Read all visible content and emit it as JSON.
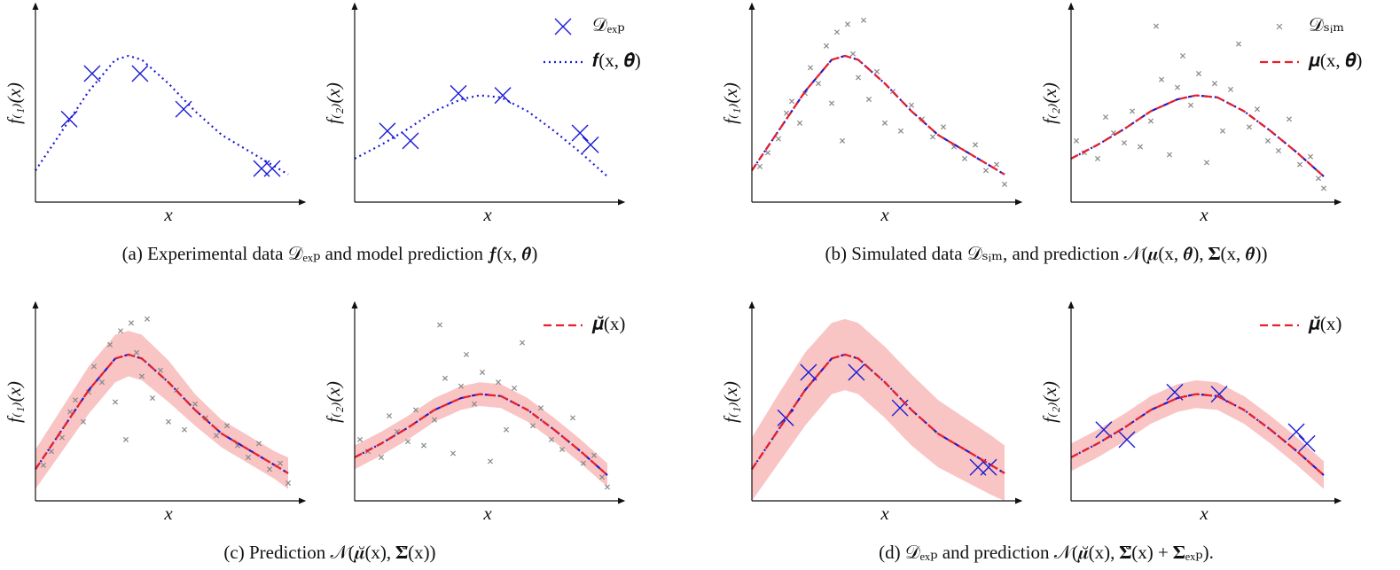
{
  "captions": [
    "(a) Experimental data 𝒟ₑₓₚ and model prediction 𝒇(x, 𝜽̂)",
    "(b) Simulated data 𝒟ₛᵢₘ, and prediction 𝒩(𝝁(x, 𝜽̂), 𝚺(x, 𝜽̂))",
    "(c) Prediction 𝒩(𝝁̆(x), 𝚺̆(x))",
    "(d) 𝒟ₑₓₚ and prediction 𝒩(𝝁̆(x), 𝚺̆(x) + 𝚺ₑₓₚ)."
  ],
  "chart_data": [
    {
      "type": "line",
      "xlabel": "x",
      "ylabel": "f₍₁₎(x)",
      "xlim": [
        0,
        10
      ],
      "ylim": [
        0,
        10
      ],
      "series": [
        {
          "type": "scatter",
          "marker": "x-large",
          "color": "#1a1ad6",
          "x": [
            1.27,
            2.13,
            3.93,
            5.57,
            8.5,
            8.9
          ],
          "values": [
            4.2,
            6.5,
            6.5,
            4.7,
            1.7,
            1.7
          ]
        },
        {
          "type": "line",
          "style": "dotted",
          "color": "#1a1ad6",
          "x": [
            0,
            1,
            2,
            3,
            3.5,
            4,
            5,
            6,
            7,
            8,
            9,
            9.5
          ],
          "values": [
            1.6,
            3.6,
            5.6,
            7.2,
            7.4,
            7.2,
            6.0,
            4.6,
            3.4,
            2.6,
            1.8,
            1.4
          ]
        }
      ]
    },
    {
      "type": "line",
      "xlabel": "x",
      "ylabel": "f₍₂₎(x)",
      "xlim": [
        0,
        10
      ],
      "ylim": [
        0,
        10
      ],
      "legend": "upper right",
      "series": [
        {
          "type": "scatter",
          "name": "𝒟ₑₓₚ",
          "marker": "x-large",
          "color": "#1a1ad6",
          "x": [
            1.23,
            2.1,
            3.9,
            5.57,
            8.47,
            8.87
          ],
          "values": [
            3.6,
            3.1,
            5.5,
            5.4,
            3.5,
            2.9
          ]
        },
        {
          "type": "line",
          "name": "𝒇(x, 𝜽̂)",
          "style": "dotted",
          "color": "#1a1ad6",
          "x": [
            0,
            1,
            2,
            3,
            4,
            4.7,
            5.5,
            6.5,
            7.5,
            8.5,
            9.5
          ],
          "values": [
            2.2,
            2.9,
            3.7,
            4.6,
            5.2,
            5.4,
            5.3,
            4.6,
            3.6,
            2.5,
            1.3
          ]
        }
      ]
    },
    {
      "type": "line",
      "xlabel": "x",
      "ylabel": "f₍₁₎(x)",
      "xlim": [
        0,
        10
      ],
      "ylim": [
        0,
        10
      ],
      "series": [
        {
          "type": "scatter",
          "marker": "x-small",
          "color": "#888888",
          "x": [
            0.3,
            0.6,
            1.0,
            1.3,
            1.5,
            1.8,
            2.0,
            2.2,
            2.5,
            2.8,
            3.0,
            3.2,
            3.4,
            3.6,
            3.8,
            4.0,
            4.2,
            4.4,
            4.7,
            5.0,
            5.3,
            5.6,
            6.0,
            6.4,
            6.8,
            7.2,
            7.6,
            8.0,
            8.4,
            8.8,
            9.2,
            9.5
          ],
          "values": [
            1.8,
            2.5,
            3.2,
            4.5,
            5.1,
            4.0,
            5.5,
            6.8,
            6.0,
            7.9,
            5.0,
            8.6,
            3.1,
            9.0,
            7.5,
            6.3,
            9.2,
            5.2,
            6.6,
            4.0,
            5.6,
            3.6,
            4.9,
            4.2,
            3.3,
            3.8,
            2.8,
            2.2,
            2.9,
            1.6,
            1.9,
            0.9
          ]
        },
        {
          "type": "line",
          "style": "dashed",
          "color": "#e8202a",
          "under_color": "#1a1ad6",
          "x": [
            0,
            1,
            2,
            3,
            3.5,
            4,
            5,
            6,
            7,
            8,
            9,
            9.5
          ],
          "values": [
            1.6,
            3.6,
            5.6,
            7.2,
            7.4,
            7.2,
            6.0,
            4.6,
            3.4,
            2.6,
            1.8,
            1.4
          ]
        }
      ]
    },
    {
      "type": "line",
      "xlabel": "x",
      "ylabel": "f₍₂₎(x)",
      "xlim": [
        0,
        10
      ],
      "ylim": [
        0,
        10
      ],
      "legend": "upper right",
      "series": [
        {
          "type": "scatter",
          "name": "𝒟ₛᵢₘ",
          "marker": "x-small",
          "color": "#888888",
          "x": [
            0.2,
            0.5,
            1.0,
            1.3,
            1.6,
            2.0,
            2.3,
            2.6,
            3.0,
            3.2,
            3.4,
            3.7,
            4.0,
            4.2,
            4.5,
            4.8,
            5.1,
            5.4,
            5.7,
            6.0,
            6.3,
            6.7,
            7.0,
            7.4,
            7.8,
            8.2,
            8.6,
            9.0,
            9.3,
            9.5
          ],
          "values": [
            3.1,
            2.5,
            2.2,
            4.3,
            3.5,
            3.0,
            4.6,
            2.8,
            4.1,
            8.9,
            6.2,
            2.4,
            5.8,
            7.4,
            4.9,
            6.5,
            2.0,
            6.0,
            3.6,
            5.7,
            8.0,
            3.8,
            4.7,
            3.1,
            2.6,
            4.2,
            1.9,
            2.3,
            1.2,
            0.7
          ]
        },
        {
          "type": "line",
          "name": "𝝁(x, 𝜽̂)",
          "style": "dashed",
          "color": "#e8202a",
          "under_color": "#1a1ad6",
          "x": [
            0,
            1,
            2,
            3,
            4,
            4.7,
            5.5,
            6.5,
            7.5,
            8.5,
            9.5
          ],
          "values": [
            2.2,
            2.9,
            3.7,
            4.6,
            5.2,
            5.4,
            5.3,
            4.6,
            3.6,
            2.5,
            1.3
          ]
        }
      ]
    },
    {
      "type": "line",
      "xlabel": "x",
      "ylabel": "f₍₁₎(x)",
      "xlim": [
        0,
        10
      ],
      "ylim": [
        0,
        10
      ],
      "series": [
        {
          "type": "band",
          "color": "#f9c4c4",
          "x": [
            0,
            1,
            2,
            3,
            3.5,
            4,
            5,
            6,
            7,
            8,
            9,
            9.5
          ],
          "lower": [
            0.6,
            2.5,
            4.4,
            6.0,
            6.3,
            6.1,
            5.0,
            3.8,
            2.7,
            1.9,
            1.1,
            0.6
          ],
          "upper": [
            2.6,
            4.7,
            6.8,
            8.4,
            8.6,
            8.4,
            7.1,
            5.4,
            4.1,
            3.3,
            2.5,
            2.2
          ]
        },
        {
          "type": "scatter",
          "marker": "x-small",
          "color": "#888888",
          "x": [
            0.3,
            0.6,
            1.0,
            1.3,
            1.5,
            1.8,
            2.0,
            2.2,
            2.5,
            2.8,
            3.0,
            3.2,
            3.4,
            3.6,
            3.8,
            4.0,
            4.2,
            4.4,
            4.7,
            5.0,
            5.3,
            5.6,
            6.0,
            6.4,
            6.8,
            7.2,
            7.6,
            8.0,
            8.4,
            8.8,
            9.2,
            9.5
          ],
          "values": [
            1.8,
            2.5,
            3.2,
            4.5,
            5.1,
            4.0,
            5.5,
            6.8,
            6.0,
            7.9,
            5.0,
            8.6,
            3.1,
            9.0,
            7.5,
            6.3,
            9.2,
            5.2,
            6.6,
            4.0,
            5.6,
            3.6,
            4.9,
            4.2,
            3.3,
            3.8,
            2.8,
            2.2,
            2.9,
            1.6,
            1.9,
            0.9
          ]
        },
        {
          "type": "line",
          "style": "dashed",
          "color": "#e8202a",
          "under_color": "#1a1ad6",
          "x": [
            0,
            1,
            2,
            3,
            3.5,
            4,
            5,
            6,
            7,
            8,
            9,
            9.5
          ],
          "values": [
            1.6,
            3.6,
            5.6,
            7.2,
            7.4,
            7.2,
            6.0,
            4.6,
            3.4,
            2.6,
            1.8,
            1.4
          ]
        }
      ]
    },
    {
      "type": "line",
      "xlabel": "x",
      "ylabel": "f₍₂₎(x)",
      "xlim": [
        0,
        10
      ],
      "ylim": [
        0,
        10
      ],
      "legend": "upper right",
      "series": [
        {
          "type": "band",
          "color": "#f9c4c4",
          "x": [
            0,
            1,
            2,
            3,
            4,
            4.7,
            5.5,
            6.5,
            7.5,
            8.5,
            9.5
          ],
          "lower": [
            1.6,
            2.3,
            3.1,
            4.0,
            4.6,
            4.8,
            4.7,
            4.0,
            3.0,
            1.9,
            0.7
          ],
          "upper": [
            2.8,
            3.5,
            4.3,
            5.2,
            5.8,
            6.0,
            5.9,
            5.2,
            4.2,
            3.1,
            1.9
          ]
        },
        {
          "type": "scatter",
          "marker": "x-small",
          "color": "#888888",
          "x": [
            0.2,
            0.5,
            1.0,
            1.3,
            1.6,
            2.0,
            2.3,
            2.6,
            3.0,
            3.2,
            3.4,
            3.7,
            4.0,
            4.2,
            4.5,
            4.8,
            5.1,
            5.4,
            5.7,
            6.0,
            6.3,
            6.7,
            7.0,
            7.4,
            7.8,
            8.2,
            8.6,
            9.0,
            9.3,
            9.5
          ],
          "values": [
            3.1,
            2.5,
            2.2,
            4.3,
            3.5,
            3.0,
            4.6,
            2.8,
            4.1,
            8.9,
            6.2,
            2.4,
            5.8,
            7.4,
            4.9,
            6.5,
            2.0,
            6.0,
            3.6,
            5.7,
            8.0,
            3.8,
            4.7,
            3.1,
            2.6,
            4.2,
            1.9,
            2.3,
            1.2,
            0.7
          ]
        },
        {
          "type": "line",
          "name": "𝝁̆(x)",
          "style": "dashed",
          "color": "#e8202a",
          "under_color": "#1a1ad6",
          "x": [
            0,
            1,
            2,
            3,
            4,
            4.7,
            5.5,
            6.5,
            7.5,
            8.5,
            9.5
          ],
          "values": [
            2.2,
            2.9,
            3.7,
            4.6,
            5.2,
            5.4,
            5.3,
            4.6,
            3.6,
            2.5,
            1.3
          ]
        }
      ]
    },
    {
      "type": "line",
      "xlabel": "x",
      "ylabel": "f₍₁₎(x)",
      "xlim": [
        0,
        10
      ],
      "ylim": [
        0,
        10
      ],
      "series": [
        {
          "type": "band",
          "color": "#f9c4c4",
          "x": [
            0,
            1,
            2,
            3,
            3.5,
            4,
            5,
            6,
            7,
            8,
            9,
            9.5
          ],
          "lower": [
            0.0,
            1.9,
            3.8,
            5.4,
            5.6,
            5.4,
            4.2,
            2.8,
            1.7,
            1.0,
            0.3,
            0.0
          ],
          "upper": [
            3.2,
            5.4,
            7.5,
            9.0,
            9.2,
            9.0,
            7.8,
            6.4,
            5.1,
            4.2,
            3.3,
            2.8
          ]
        },
        {
          "type": "scatter",
          "marker": "x-large",
          "color": "#1a1ad6",
          "x": [
            1.27,
            2.13,
            3.93,
            5.57,
            8.5,
            8.9
          ],
          "values": [
            4.2,
            6.5,
            6.5,
            4.7,
            1.7,
            1.7
          ]
        },
        {
          "type": "line",
          "style": "dashed",
          "color": "#e8202a",
          "under_color": "#1a1ad6",
          "x": [
            0,
            1,
            2,
            3,
            3.5,
            4,
            5,
            6,
            7,
            8,
            9,
            9.5
          ],
          "values": [
            1.6,
            3.6,
            5.6,
            7.2,
            7.4,
            7.2,
            6.0,
            4.6,
            3.4,
            2.6,
            1.8,
            1.4
          ]
        }
      ]
    },
    {
      "type": "line",
      "xlabel": "x",
      "ylabel": "f₍₂₎(x)",
      "xlim": [
        0,
        10
      ],
      "ylim": [
        0,
        10
      ],
      "legend": "upper right",
      "series": [
        {
          "type": "band",
          "color": "#f9c4c4",
          "x": [
            0,
            1,
            2,
            3,
            4,
            4.7,
            5.5,
            6.5,
            7.5,
            8.5,
            9.5
          ],
          "lower": [
            1.5,
            2.2,
            3.0,
            3.9,
            4.5,
            4.7,
            4.6,
            3.9,
            2.9,
            1.8,
            0.6
          ],
          "upper": [
            2.9,
            3.6,
            4.4,
            5.3,
            5.9,
            6.1,
            6.0,
            5.3,
            4.3,
            3.2,
            2.0
          ]
        },
        {
          "type": "scatter",
          "marker": "x-large",
          "color": "#1a1ad6",
          "x": [
            1.23,
            2.1,
            3.9,
            5.57,
            8.47,
            8.87
          ],
          "values": [
            3.6,
            3.1,
            5.5,
            5.4,
            3.5,
            2.9
          ]
        },
        {
          "type": "line",
          "name": "𝝁̆(x)",
          "style": "dashed",
          "color": "#e8202a",
          "under_color": "#1a1ad6",
          "x": [
            0,
            1,
            2,
            3,
            4,
            4.7,
            5.5,
            6.5,
            7.5,
            8.5,
            9.5
          ],
          "values": [
            2.2,
            2.9,
            3.7,
            4.6,
            5.2,
            5.4,
            5.3,
            4.6,
            3.6,
            2.5,
            1.3
          ]
        }
      ]
    }
  ]
}
